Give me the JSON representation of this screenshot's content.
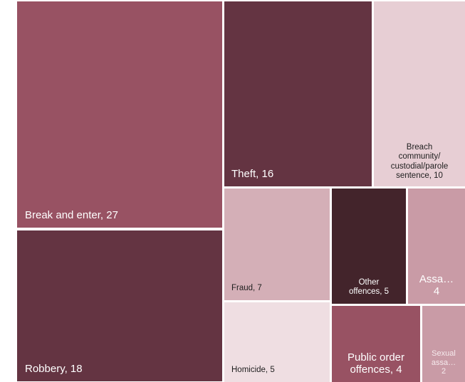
{
  "chart_data": {
    "type": "treemap",
    "title": "",
    "items": [
      {
        "label": "Break and enter, 27",
        "category": "Break and enter",
        "value": 27,
        "color": "#985263"
      },
      {
        "label": "Robbery, 18",
        "category": "Robbery",
        "value": 18,
        "color": "#643442"
      },
      {
        "label": "Theft, 16",
        "category": "Theft",
        "value": 16,
        "color": "#643442"
      },
      {
        "label": "Breach community/ custodial/parole sentence, 10",
        "category": "Breach community/custodial/parole sentence",
        "value": 10,
        "color": "#e7ced4"
      },
      {
        "label": "Fraud, 7",
        "category": "Fraud",
        "value": 7,
        "color": "#d4afb7"
      },
      {
        "label": "Other offences, 5",
        "category": "Other offences",
        "value": 5,
        "color": "#43242b"
      },
      {
        "label": "Assa… 4",
        "category": "Assault",
        "value": 4,
        "color": "#c99ba6"
      },
      {
        "label": "Homicide, 5",
        "category": "Homicide",
        "value": 5,
        "color": "#efdee2"
      },
      {
        "label": "Public order offences, 4",
        "category": "Public order offences",
        "value": 4,
        "color": "#985263"
      },
      {
        "label": "Sexual assa… 2",
        "category": "Sexual assault",
        "value": 2,
        "color": "#c99ba6"
      }
    ]
  }
}
